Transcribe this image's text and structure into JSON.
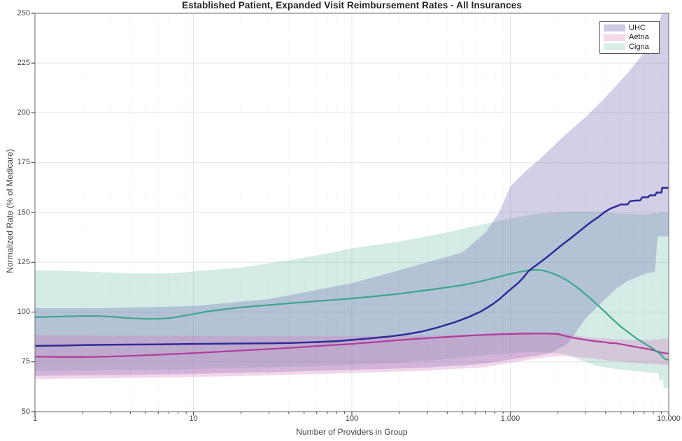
{
  "chart_data": {
    "type": "line",
    "title": "Established Patient, Expanded Visit Reimbursement Rates - All Insurances",
    "xlabel": "Number of Providers in Group",
    "ylabel": "Normalized Rate (% of Medicare)",
    "x_scale": "log",
    "xlim": [
      1,
      10000
    ],
    "ylim": [
      50,
      250
    ],
    "y_ticks": [
      50,
      75,
      100,
      125,
      150,
      175,
      200,
      225,
      250
    ],
    "x_ticks": [
      {
        "v": 1,
        "label": "1"
      },
      {
        "v": 10,
        "label": "10"
      },
      {
        "v": 100,
        "label": "100"
      },
      {
        "v": 1000,
        "label": "1,000"
      },
      {
        "v": 10000,
        "label": "10,000"
      }
    ],
    "grid": true,
    "legend_position": "top-right",
    "legend": [
      {
        "label": "UHC",
        "swatch": "#cdc9e6"
      },
      {
        "label": "Aetna",
        "swatch": "#f3d9ea"
      },
      {
        "label": "Cigna",
        "swatch": "#d9eee8"
      }
    ],
    "colors": {
      "uhc_line": "#2e2b99",
      "aetna_line": "#b23a9d",
      "cigna_line": "#3aa78e",
      "uhc_band": "rgba(106,97,176,0.30)",
      "aetna_band": "rgba(213,107,183,0.28)",
      "cigna_band": "rgba(77,176,146,0.24)",
      "spine": "#808080",
      "tick": "#424242",
      "grid_major": "#e4e4e4",
      "grid_minor": "#ebebeb"
    },
    "band_draw_order": [
      "Cigna",
      "UHC",
      "Aetna"
    ],
    "line_draw_order": [
      "Aetna",
      "Cigna",
      "UHC"
    ],
    "series": [
      {
        "name": "UHC",
        "line_color": "#2e2b99",
        "line_width": 2.5,
        "band_color": "rgba(106,97,176,0.30)",
        "points": [
          [
            1,
            83
          ],
          [
            1.5,
            83.2
          ],
          [
            2,
            83.4
          ],
          [
            3,
            83.6
          ],
          [
            4,
            83.7
          ],
          [
            6,
            83.8
          ],
          [
            10,
            84
          ],
          [
            15,
            84.1
          ],
          [
            20,
            84.2
          ],
          [
            30,
            84.3
          ],
          [
            40,
            84.5
          ],
          [
            60,
            84.9
          ],
          [
            80,
            85.4
          ],
          [
            100,
            86
          ],
          [
            130,
            86.8
          ],
          [
            170,
            87.7
          ],
          [
            220,
            88.8
          ],
          [
            280,
            90.3
          ],
          [
            350,
            92.3
          ],
          [
            450,
            95
          ],
          [
            550,
            97.6
          ],
          [
            650,
            100.2
          ],
          [
            760,
            103.5
          ],
          [
            850,
            106.3
          ],
          [
            950,
            109.8
          ],
          [
            1100,
            114
          ],
          [
            1200,
            117
          ],
          [
            1300,
            120.5
          ],
          [
            1400,
            122.5
          ],
          [
            1500,
            124.2
          ],
          [
            1700,
            127.5
          ],
          [
            1900,
            130.6
          ],
          [
            2100,
            133.5
          ],
          [
            2400,
            137
          ],
          [
            2700,
            140.2
          ],
          [
            3000,
            143.2
          ],
          [
            3300,
            145.7
          ],
          [
            3600,
            147.7
          ],
          [
            3900,
            150
          ],
          [
            4300,
            152
          ],
          [
            4700,
            153.2
          ],
          [
            5000,
            154
          ],
          [
            5500,
            154
          ],
          [
            5700,
            155.6
          ],
          [
            6200,
            156
          ],
          [
            6600,
            156
          ],
          [
            6800,
            157.6
          ],
          [
            7400,
            157.6
          ],
          [
            7600,
            158.6
          ],
          [
            8200,
            158.6
          ],
          [
            8400,
            160
          ],
          [
            9000,
            160
          ],
          [
            9100,
            162.4
          ],
          [
            10000,
            162.4
          ]
        ],
        "band": {
          "x": [
            1,
            3,
            10,
            30,
            100,
            200,
            300,
            500,
            700,
            850,
            1000,
            1300,
            1500,
            1800,
            2300,
            3000,
            3800,
            4700,
            5500,
            6500,
            7300,
            8000,
            8200,
            8500,
            8900,
            9100,
            10000
          ],
          "upper": [
            102,
            102,
            103,
            106.5,
            114.5,
            121,
            125,
            130,
            140,
            150,
            163,
            172,
            176,
            182,
            190,
            198,
            206,
            214,
            220,
            227,
            232,
            238,
            240,
            244,
            248,
            250,
            250
          ],
          "lower": [
            68,
            68.3,
            69,
            69.8,
            71,
            71.7,
            72.2,
            73.2,
            74.2,
            75.2,
            76.2,
            77.5,
            78.2,
            79.5,
            84,
            97,
            105,
            112,
            115.5,
            118,
            119.5,
            120,
            120,
            138,
            138,
            138,
            138
          ]
        }
      },
      {
        "name": "Aetna",
        "line_color": "#b23a9d",
        "line_width": 2.2,
        "band_color": "rgba(213,107,183,0.28)",
        "points": [
          [
            1,
            77.6
          ],
          [
            1.5,
            77.4
          ],
          [
            2,
            77.4
          ],
          [
            3,
            77.7
          ],
          [
            4,
            78
          ],
          [
            5,
            78.3
          ],
          [
            7,
            78.8
          ],
          [
            10,
            79.4
          ],
          [
            14,
            80
          ],
          [
            20,
            80.7
          ],
          [
            28,
            81.3
          ],
          [
            40,
            82
          ],
          [
            55,
            82.7
          ],
          [
            75,
            83.4
          ],
          [
            100,
            84
          ],
          [
            140,
            84.9
          ],
          [
            190,
            85.8
          ],
          [
            250,
            86.5
          ],
          [
            330,
            87.1
          ],
          [
            430,
            87.7
          ],
          [
            560,
            88.2
          ],
          [
            700,
            88.6
          ],
          [
            900,
            88.9
          ],
          [
            1100,
            89.1
          ],
          [
            1400,
            89.2
          ],
          [
            1700,
            89.2
          ],
          [
            2000,
            89
          ],
          [
            2200,
            88.1
          ],
          [
            2500,
            87.1
          ],
          [
            2900,
            86.2
          ],
          [
            3400,
            85.4
          ],
          [
            4000,
            84.8
          ],
          [
            4300,
            84.4
          ],
          [
            4600,
            84.4
          ],
          [
            5200,
            83.6
          ],
          [
            5800,
            82.9
          ],
          [
            6500,
            82.2
          ],
          [
            7200,
            81.6
          ],
          [
            8000,
            80.8
          ],
          [
            8700,
            80
          ],
          [
            9300,
            79.4
          ],
          [
            10000,
            79.2
          ]
        ],
        "band": {
          "x": [
            1,
            5,
            10,
            30,
            100,
            300,
            700,
            1200,
            1700,
            2200,
            3000,
            4500,
            6000,
            7500,
            9000,
            10000
          ],
          "upper": [
            88.4,
            88.2,
            88,
            87.8,
            87.8,
            88.2,
            89,
            90,
            90,
            89.4,
            87.4,
            86.4,
            86,
            86,
            86.4,
            87
          ],
          "lower": [
            66.4,
            67,
            67.4,
            68.2,
            69.4,
            70.6,
            72.4,
            75.6,
            77.4,
            78,
            77,
            75.4,
            74.6,
            74,
            73.6,
            73.4
          ]
        }
      },
      {
        "name": "Cigna",
        "line_color": "#3aa78e",
        "line_width": 2.2,
        "band_color": "rgba(77,176,146,0.24)",
        "points": [
          [
            1,
            97.4
          ],
          [
            1.5,
            97.8
          ],
          [
            2,
            98
          ],
          [
            2.5,
            98
          ],
          [
            3,
            97.7
          ],
          [
            4,
            96.9
          ],
          [
            5,
            96.6
          ],
          [
            6,
            96.6
          ],
          [
            7,
            96.9
          ],
          [
            8,
            97.6
          ],
          [
            10,
            99
          ],
          [
            12,
            100.2
          ],
          [
            15,
            101.2
          ],
          [
            20,
            102.4
          ],
          [
            25,
            103
          ],
          [
            30,
            103.5
          ],
          [
            40,
            104.4
          ],
          [
            50,
            105
          ],
          [
            65,
            105.7
          ],
          [
            80,
            106.2
          ],
          [
            100,
            106.8
          ],
          [
            130,
            107.7
          ],
          [
            160,
            108.4
          ],
          [
            200,
            109.2
          ],
          [
            250,
            110.2
          ],
          [
            300,
            111
          ],
          [
            400,
            112.4
          ],
          [
            500,
            113.5
          ],
          [
            600,
            114.8
          ],
          [
            700,
            116
          ],
          [
            800,
            117.2
          ],
          [
            900,
            118.2
          ],
          [
            1000,
            119.2
          ],
          [
            1150,
            120.2
          ],
          [
            1300,
            120.9
          ],
          [
            1450,
            121.2
          ],
          [
            1600,
            120.9
          ],
          [
            1800,
            119.8
          ],
          [
            2000,
            118.3
          ],
          [
            2300,
            115.8
          ],
          [
            2600,
            112.8
          ],
          [
            3000,
            108.8
          ],
          [
            3400,
            105
          ],
          [
            3900,
            100.6
          ],
          [
            4400,
            96.6
          ],
          [
            5000,
            92.6
          ],
          [
            5600,
            89.6
          ],
          [
            6300,
            86.6
          ],
          [
            7000,
            84.3
          ],
          [
            7700,
            82.3
          ],
          [
            8400,
            80.3
          ],
          [
            9000,
            78.3
          ],
          [
            9400,
            76.6
          ],
          [
            9700,
            76.1
          ],
          [
            10000,
            76.3
          ]
        ],
        "band": {
          "x": [
            1,
            2,
            4,
            7,
            10,
            20,
            40,
            70,
            100,
            200,
            400,
            700,
            1000,
            1500,
            2200,
            3500,
            5000,
            7000,
            8000,
            8600,
            8700,
            9200,
            9300,
            10000
          ],
          "upper": [
            121,
            120.4,
            119.4,
            119.4,
            120.4,
            122.4,
            126,
            129.4,
            132,
            135.4,
            140,
            144.4,
            147,
            149.4,
            150.4,
            150.4,
            149.4,
            149,
            149.6,
            149.6,
            150,
            150,
            150,
            150
          ],
          "lower": [
            70.4,
            70.6,
            71,
            71.2,
            71.4,
            72,
            72.6,
            73.2,
            73.6,
            74.6,
            76.4,
            78.4,
            79.4,
            80,
            79,
            73,
            71,
            70,
            69.4,
            69.4,
            66,
            66,
            62,
            61.4
          ]
        }
      }
    ]
  }
}
